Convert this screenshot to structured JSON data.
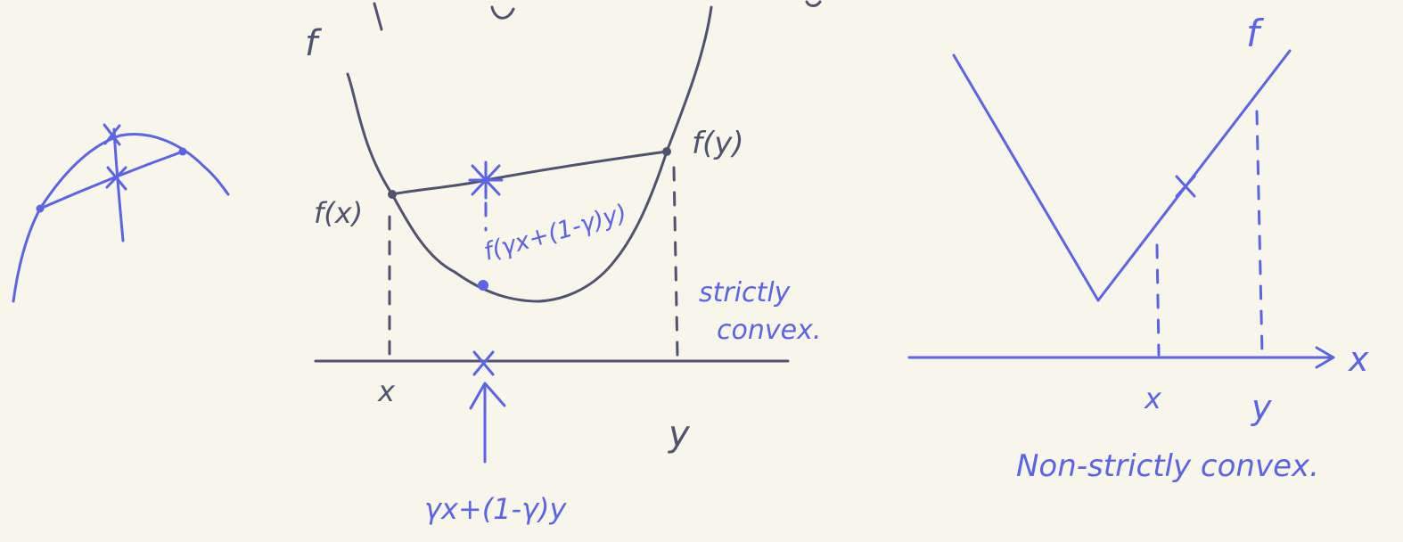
{
  "colors": {
    "background": "#f8f6ea",
    "dark_ink": "#4f5270",
    "blue_ink": "#5b63e6"
  },
  "left_sketch": {
    "label": ""
  },
  "middle": {
    "f_label": "f",
    "fx_label": "f(x)",
    "fy_label": "f(y)",
    "f_combo_label": "f(γx+(1-γ)y)",
    "x_label": "x",
    "y_label": "y",
    "combo_label": "γx+(1-γ)y",
    "strict_line1": "strictly",
    "strict_line2": "convex."
  },
  "right": {
    "f_label": "f",
    "x_axis_label": "x",
    "x_label": "x",
    "y_label": "y",
    "caption": "Non-strictly convex."
  }
}
